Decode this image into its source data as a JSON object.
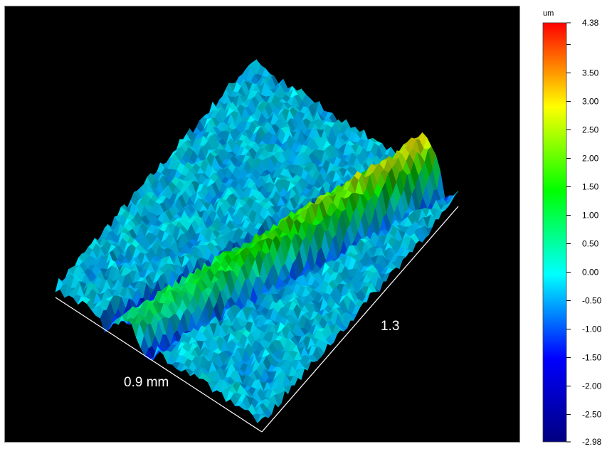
{
  "chart_data": {
    "type": "heatmap",
    "description_kind": "3d-surface",
    "axes": {
      "x_label": "0.9 mm",
      "y_label": "1.3"
    },
    "colorbar": {
      "unit": "um",
      "min": -2.98,
      "max": 4.38,
      "tick_labels": [
        "4.38",
        "3.50",
        "3.00",
        "2.50",
        "2.00",
        "1.50",
        "1.00",
        "0.50",
        "0.00",
        "-0.50",
        "-1.00",
        "-1.50",
        "-2.00",
        "-2.50",
        "-2.98"
      ],
      "tick_values": [
        4.38,
        3.5,
        3.0,
        2.5,
        2.0,
        1.5,
        1.0,
        0.5,
        0.0,
        -0.5,
        -1.0,
        -1.5,
        -2.0,
        -2.5,
        -2.98
      ],
      "colors": [
        "#000080",
        "#0000ff",
        "#00ffff",
        "#00ff00",
        "#ffff00",
        "#ff0000"
      ],
      "extra_minor_tick_value": 4.0
    },
    "surface": {
      "base_level": -0.3,
      "ridge_peak": 3.0,
      "trench_level": -1.5
    }
  }
}
